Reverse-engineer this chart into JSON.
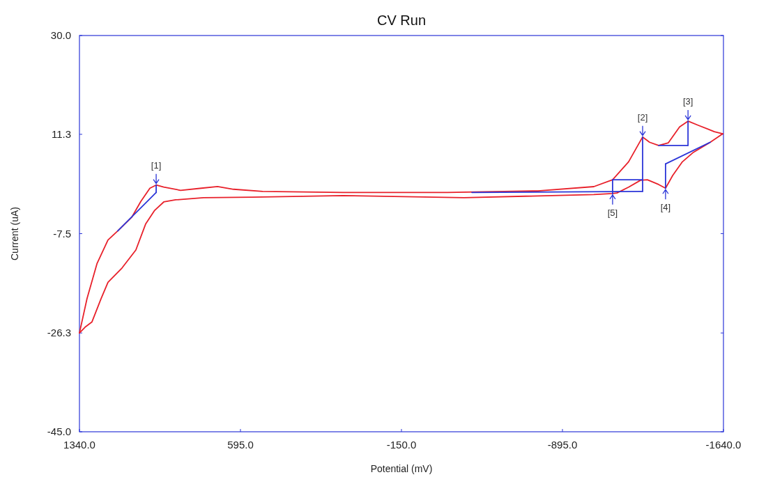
{
  "chart_data": {
    "type": "line",
    "title": "CV Run",
    "xlabel": "Potential (mV)",
    "ylabel": "Current (uA)",
    "xlim": [
      1340,
      -1640
    ],
    "xticks": [
      {
        "value": 1340,
        "label": "1340.0"
      },
      {
        "value": 595,
        "label": "595.0"
      },
      {
        "value": -150,
        "label": "-150.0"
      },
      {
        "value": -895,
        "label": "-895.0"
      },
      {
        "value": -1640,
        "label": "-1640.0"
      }
    ],
    "ylim": [
      -45,
      30
    ],
    "yticks": [
      {
        "value": -45,
        "label": "-45.0"
      },
      -26.3,
      -7.5,
      11.3,
      {
        "value": 30,
        "label": "30.0"
      }
    ],
    "grid": false,
    "series": [
      {
        "color": "#e8202a",
        "x": [
          1340,
          1305,
          1259,
          1208,
          1163,
          1098,
          1056,
          1014,
          985,
          950,
          872,
          776,
          701,
          627,
          492,
          121,
          -363,
          -782,
          -1040,
          -1127,
          -1201,
          -1266,
          -1298,
          -1340,
          -1385,
          -1437,
          -1476,
          -1524,
          -1598,
          -1637
        ],
        "values": [
          -26.3,
          -19.8,
          -13.2,
          -8.7,
          -7.0,
          -4.4,
          -1.4,
          1.1,
          1.7,
          1.3,
          0.7,
          1.1,
          1.4,
          0.9,
          0.5,
          0.3,
          0.3,
          0.6,
          1.4,
          2.7,
          6.1,
          10.8,
          9.8,
          9.2,
          9.7,
          12.7,
          13.8,
          13.0,
          11.8,
          11.4
        ]
      },
      {
        "color": "#e8202a",
        "x": [
          -1637,
          -1579,
          -1501,
          -1450,
          -1405,
          -1372,
          -1340,
          -1288,
          -1256,
          -1201,
          -1147,
          -1127,
          -1040,
          -440,
          121,
          540,
          766,
          895,
          950,
          992,
          1034,
          1079,
          1143,
          1208,
          1240,
          1282,
          1314,
          1340
        ],
        "values": [
          11.4,
          9.8,
          7.9,
          6.1,
          3.5,
          1.1,
          1.8,
          2.7,
          2.6,
          1.3,
          0.2,
          0.1,
          -0.1,
          -0.7,
          -0.3,
          -0.6,
          -0.7,
          -1.1,
          -1.5,
          -3.1,
          -5.7,
          -10.6,
          -14.0,
          -16.7,
          -19.8,
          -24.2,
          -25.2,
          -26.3
        ]
      },
      {
        "color": "#2b35d8",
        "x": [
          1163,
          985
        ],
        "values": [
          -7.0,
          0.3
        ]
      },
      {
        "color": "#2b35d8",
        "x": [
          985,
          985
        ],
        "values": [
          0.3,
          1.7
        ]
      },
      {
        "color": "#2b35d8",
        "x": [
          -476,
          -1266
        ],
        "values": [
          0.3,
          0.5
        ]
      },
      {
        "color": "#2b35d8",
        "x": [
          -1266,
          -1266
        ],
        "values": [
          0.5,
          10.8
        ]
      },
      {
        "color": "#2b35d8",
        "x": [
          -1340,
          -1476
        ],
        "values": [
          9.2,
          9.2
        ]
      },
      {
        "color": "#2b35d8",
        "x": [
          -1476,
          -1476
        ],
        "values": [
          9.2,
          13.8
        ]
      },
      {
        "color": "#2b35d8",
        "x": [
          -1579,
          -1372
        ],
        "values": [
          9.8,
          5.7
        ]
      },
      {
        "color": "#2b35d8",
        "x": [
          -1372,
          -1372
        ],
        "values": [
          5.7,
          1.1
        ]
      },
      {
        "color": "#2b35d8",
        "x": [
          -1266,
          -1127
        ],
        "values": [
          2.7,
          2.7
        ]
      },
      {
        "color": "#2b35d8",
        "x": [
          -1127,
          -1127
        ],
        "values": [
          2.7,
          0.0
        ]
      }
    ],
    "annotations": [
      {
        "text": "[1]",
        "x": 985,
        "y": 1.7
      },
      {
        "text": "[2]",
        "x": -1266,
        "y": 10.8
      },
      {
        "text": "[3]",
        "x": -1476,
        "y": 13.8
      },
      {
        "text": "[4]",
        "x": -1372,
        "y": 1.1
      },
      {
        "text": "[5]",
        "x": -1127,
        "y": 0.1
      }
    ]
  }
}
